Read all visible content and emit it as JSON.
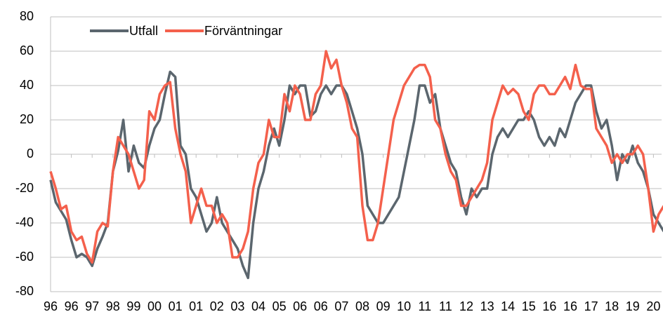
{
  "chart_data": {
    "type": "line",
    "categories": [
      "96",
      null,
      null,
      null,
      "96",
      null,
      null,
      null,
      "97",
      null,
      null,
      null,
      "98",
      null,
      null,
      null,
      "99",
      null,
      null,
      null,
      "00",
      null,
      null,
      null,
      "01",
      null,
      null,
      null,
      "01",
      null,
      null,
      null,
      "02",
      null,
      null,
      null,
      "03",
      null,
      null,
      null,
      "04",
      null,
      null,
      null,
      "05",
      null,
      null,
      null,
      "06",
      null,
      null,
      null,
      "06",
      null,
      null,
      null,
      "07",
      null,
      null,
      null,
      "08",
      null,
      null,
      null,
      "09",
      null,
      null,
      null,
      "10",
      null,
      null,
      null,
      "11",
      null,
      null,
      null,
      "11",
      null,
      null,
      null,
      "12",
      null,
      null,
      null,
      "13",
      null,
      null,
      null,
      "14",
      null,
      null,
      null,
      "15",
      null,
      null,
      null,
      "16",
      null,
      null,
      null,
      "16",
      null,
      null,
      null,
      "17",
      null,
      null,
      null,
      "18",
      null,
      null,
      null,
      "19",
      null,
      null,
      null,
      "20",
      null,
      null
    ],
    "series": [
      {
        "name": "Utfall",
        "color": "#5b666e",
        "values": [
          -15,
          -28,
          -33,
          -38,
          -50,
          -60,
          -58,
          -60,
          -65,
          -55,
          -48,
          -40,
          -10,
          2,
          20,
          -10,
          5,
          -5,
          -8,
          5,
          15,
          20,
          35,
          48,
          45,
          5,
          0,
          -20,
          -25,
          -35,
          -45,
          -40,
          -25,
          -40,
          -45,
          -50,
          -55,
          -65,
          -72,
          -40,
          -20,
          -10,
          5,
          15,
          5,
          20,
          40,
          35,
          40,
          40,
          22,
          25,
          35,
          40,
          35,
          40,
          40,
          35,
          25,
          15,
          0,
          -30,
          -35,
          -40,
          -40,
          -35,
          -30,
          -25,
          -10,
          5,
          20,
          40,
          40,
          30,
          35,
          15,
          5,
          -5,
          -10,
          -25,
          -35,
          -20,
          -25,
          -20,
          -20,
          0,
          10,
          15,
          10,
          15,
          20,
          20,
          25,
          20,
          10,
          5,
          10,
          5,
          15,
          10,
          20,
          30,
          35,
          40,
          40,
          25,
          15,
          20,
          5,
          -15,
          0,
          -5,
          5,
          -5,
          -10,
          -20,
          -35,
          -40,
          -45
        ]
      },
      {
        "name": "Förväntningar",
        "color": "#f4604c",
        "values": [
          -10,
          -20,
          -32,
          -30,
          -45,
          -50,
          -48,
          -58,
          -63,
          -45,
          -40,
          -42,
          -10,
          10,
          5,
          0,
          -10,
          -20,
          -15,
          25,
          20,
          35,
          40,
          42,
          15,
          0,
          -10,
          -40,
          -30,
          -20,
          -30,
          -30,
          -40,
          -35,
          -40,
          -60,
          -60,
          -55,
          -45,
          -20,
          -5,
          0,
          20,
          10,
          10,
          35,
          25,
          40,
          35,
          20,
          20,
          35,
          40,
          60,
          50,
          55,
          40,
          30,
          15,
          10,
          -30,
          -50,
          -50,
          -40,
          -20,
          0,
          20,
          30,
          40,
          45,
          50,
          52,
          52,
          45,
          20,
          15,
          0,
          -10,
          -15,
          -30,
          -30,
          -25,
          -20,
          -15,
          -5,
          20,
          30,
          40,
          35,
          38,
          35,
          25,
          20,
          35,
          40,
          40,
          35,
          35,
          40,
          45,
          38,
          52,
          40,
          38,
          38,
          15,
          10,
          5,
          -5,
          0,
          -5,
          0,
          0,
          5,
          0,
          -20,
          -45,
          -35,
          -30
        ]
      }
    ],
    "ylim": [
      -80,
      80
    ],
    "yticks": [
      -80,
      -60,
      -40,
      -20,
      0,
      20,
      40,
      60,
      80
    ],
    "grid": true
  }
}
